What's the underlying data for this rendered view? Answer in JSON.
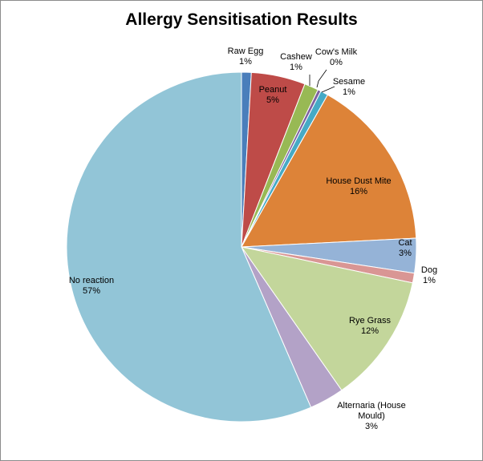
{
  "chart_data": {
    "type": "pie",
    "title": "Allergy Sensitisation Results",
    "legend": "none",
    "slices": [
      {
        "name": "Raw Egg",
        "value_label": "1%",
        "value": 0.9,
        "color": "#4a7ebb"
      },
      {
        "name": "Peanut",
        "value_label": "5%",
        "value": 5.0,
        "color": "#be4b48"
      },
      {
        "name": "Cashew",
        "value_label": "1%",
        "value": 1.3,
        "color": "#98b954"
      },
      {
        "name": "Cow's Milk",
        "value_label": "0%",
        "value": 0.3,
        "color": "#7d60a0"
      },
      {
        "name": "Sesame",
        "value_label": "1%",
        "value": 0.7,
        "color": "#46aac5"
      },
      {
        "name": "House Dust Mite",
        "value_label": "16%",
        "value": 16.0,
        "color": "#dd8338"
      },
      {
        "name": "Cat",
        "value_label": "3%",
        "value": 3.2,
        "color": "#95b3d7"
      },
      {
        "name": "Dog",
        "value_label": "1%",
        "value": 0.9,
        "color": "#d99694"
      },
      {
        "name": "Rye Grass",
        "value_label": "12%",
        "value": 12.0,
        "color": "#c3d69b"
      },
      {
        "name": "Alternaria (House Mould)",
        "value_label": "3%",
        "value": 3.2,
        "color": "#b3a2c7"
      },
      {
        "name": "No reaction",
        "value_label": "57%",
        "value": 56.5,
        "color": "#92c5d7"
      }
    ]
  }
}
